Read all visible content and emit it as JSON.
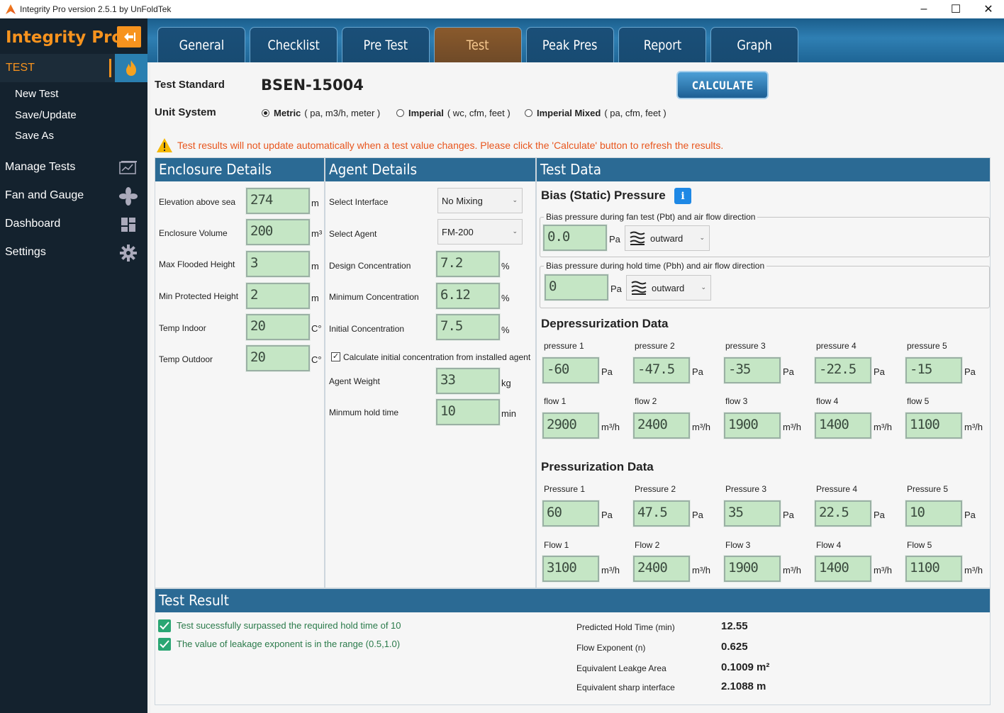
{
  "window": {
    "title": "Integrity Pro version 2.5.1 by UnFoldTek"
  },
  "sidebar": {
    "brand": "Integrity Pro",
    "section": "TEST",
    "sub_items": [
      "New Test",
      "Save/Update",
      "Save As"
    ],
    "nav": [
      "Manage Tests",
      "Fan and Gauge",
      "Dashboard",
      "Settings"
    ]
  },
  "tabs": [
    "General",
    "Checklist",
    "Pre Test",
    "Test",
    "Peak Pres",
    "Report",
    "Graph"
  ],
  "active_tab": "Test",
  "header": {
    "standard_label": "Test Standard",
    "standard_value": "BSEN-15004",
    "calculate": "CALCULATE",
    "unit_label": "Unit System",
    "units": [
      {
        "name": "Metric",
        "detail": "( pa, m3/h, meter )",
        "selected": true
      },
      {
        "name": "Imperial",
        "detail": "( wc, cfm, feet )",
        "selected": false
      },
      {
        "name": "Imperial Mixed",
        "detail": "( pa, cfm, feet )",
        "selected": false
      }
    ],
    "warning": "Test results will not update automatically when a test value changes. Please click the 'Calculate' button to refresh the results."
  },
  "enclosure": {
    "title": "Enclosure Details",
    "fields": [
      {
        "label": "Elevation above sea",
        "value": "274",
        "unit": "m"
      },
      {
        "label": "Enclosure Volume",
        "value": "200",
        "unit": "m³"
      },
      {
        "label": "Max Flooded Height",
        "value": "3",
        "unit": "m"
      },
      {
        "label": "Min Protected Height",
        "value": "2",
        "unit": "m"
      },
      {
        "label": "Temp Indoor",
        "value": "20",
        "unit": "C°"
      },
      {
        "label": "Temp Outdoor",
        "value": "20",
        "unit": "C°"
      }
    ]
  },
  "agent": {
    "title": "Agent Details",
    "interface_label": "Select Interface",
    "interface_value": "No Mixing",
    "agent_label": "Select Agent",
    "agent_value": "FM-200",
    "fields": [
      {
        "label": "Design Concentration",
        "value": "7.2",
        "unit": "%"
      },
      {
        "label": "Minimum Concentration",
        "value": "6.12",
        "unit": "%"
      },
      {
        "label": "Initial Concentration",
        "value": "7.5",
        "unit": "%"
      }
    ],
    "calc_checkbox": "Calculate initial concentration from installed agent",
    "weight_label": "Agent Weight",
    "weight_value": "33",
    "weight_unit": "kg",
    "hold_label": "Minmum hold time",
    "hold_value": "10",
    "hold_unit": "min"
  },
  "test_data": {
    "title": "Test Data",
    "bias_title": "Bias (Static) Pressure",
    "pbt_caption": "Bias pressure during fan test (Pbt) and air flow direction",
    "pbt_value": "0.0",
    "pbt_dir": "outward",
    "pbh_caption": "Bias pressure during hold time (Pbh) and air flow direction",
    "pbh_value": "0",
    "pbh_dir": "outward",
    "pa": "Pa",
    "flow_unit": "m³/h",
    "depress": {
      "title": "Depressurization Data",
      "p_labels": [
        "pressure 1",
        "pressure 2",
        "pressure 3",
        "pressure 4",
        "pressure 5"
      ],
      "p_values": [
        "-60",
        "-47.5",
        "-35",
        "-22.5",
        "-15"
      ],
      "f_labels": [
        "flow 1",
        "flow 2",
        "flow 3",
        "flow 4",
        "flow 5"
      ],
      "f_values": [
        "2900",
        "2400",
        "1900",
        "1400",
        "1100"
      ]
    },
    "press": {
      "title": "Pressurization Data",
      "p_labels": [
        "Pressure 1",
        "Pressure 2",
        "Pressure 3",
        "Pressure 4",
        "Pressure 5"
      ],
      "p_values": [
        "60",
        "47.5",
        "35",
        "22.5",
        "10"
      ],
      "f_labels": [
        "Flow 1",
        "Flow 2",
        "Flow 3",
        "Flow 4",
        "Flow 5"
      ],
      "f_values": [
        "3100",
        "2400",
        "1900",
        "1400",
        "1100"
      ]
    }
  },
  "result": {
    "title": "Test Result",
    "messages": [
      "Test sucessfully surpassed the required hold time of 10",
      "The value of leakage exponent is in the range (0.5,1.0)"
    ],
    "rows": [
      {
        "label": "Predicted Hold Time (min)",
        "value": "12.55"
      },
      {
        "label": "Flow Exponent (n)",
        "value": "0.625"
      },
      {
        "label": "Equivalent Leakge Area",
        "value": "0.1009 m²"
      },
      {
        "label": "Equivalent sharp interface",
        "value": "2.1088 m"
      }
    ]
  },
  "colors": {
    "accent": "#f7931e",
    "header_blue": "#2b6a94",
    "sidebar": "#14222e",
    "lcd": "#c5e6c5",
    "ok_green": "#2aa673",
    "warning": "#e8561e"
  }
}
